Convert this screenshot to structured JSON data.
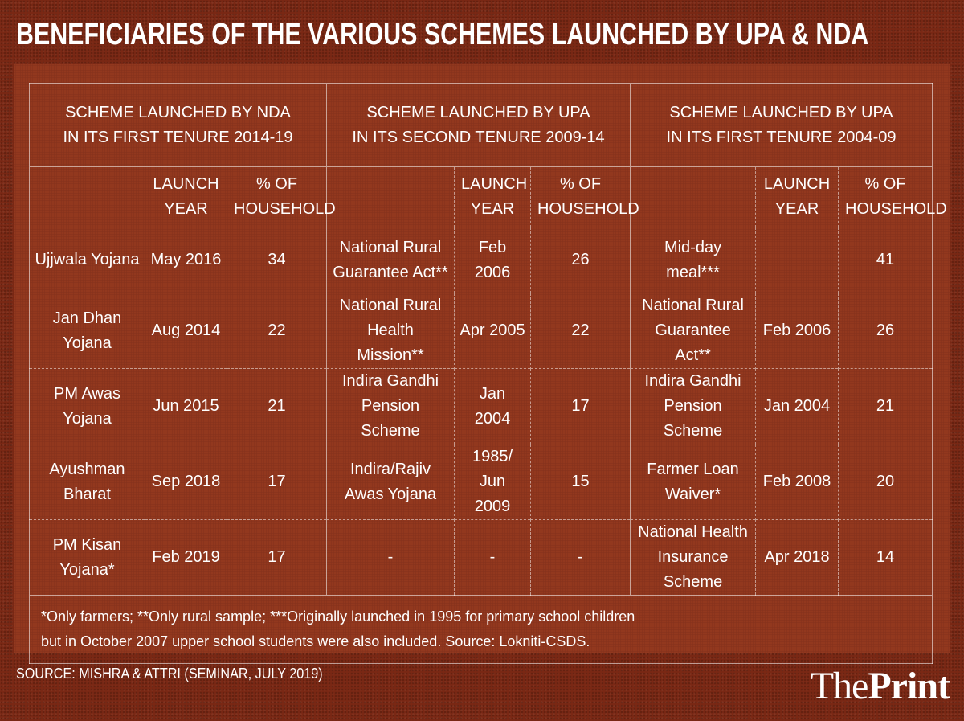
{
  "title": "BENEFICIARIES OF THE VARIOUS SCHEMES LAUNCHED BY UPA & NDA",
  "chart_data": {
    "type": "table",
    "groups": [
      {
        "header": [
          "SCHEME LAUNCHED BY NDA",
          "IN ITS FIRST TENURE 2014-19"
        ],
        "columns": [
          "",
          "LAUNCH YEAR",
          "% OF HOUSEHOLD"
        ],
        "rows": [
          [
            "Ujjwala Yojana",
            "May 2016",
            "34"
          ],
          [
            "Jan Dhan Yojana",
            "Aug 2014",
            "22"
          ],
          [
            "PM Awas Yojana",
            "Jun 2015",
            "21"
          ],
          [
            "Ayushman Bharat",
            "Sep 2018",
            "17"
          ],
          [
            "PM Kisan Yojana*",
            "Feb 2019",
            "17"
          ]
        ]
      },
      {
        "header": [
          "SCHEME LAUNCHED BY UPA",
          "IN ITS SECOND TENURE 2009-14"
        ],
        "columns": [
          "",
          "LAUNCH YEAR",
          "% OF HOUSEHOLD"
        ],
        "rows": [
          [
            "National Rural Guarantee Act**",
            "Feb 2006",
            "26"
          ],
          [
            "National Rural Health Mission**",
            "Apr 2005",
            "22"
          ],
          [
            "Indira Gandhi Pension Scheme",
            "Jan 2004",
            "17"
          ],
          [
            "Indira/Rajiv Awas Yojana",
            "1985/ Jun 2009",
            "15"
          ],
          [
            "-",
            "-",
            "-"
          ]
        ]
      },
      {
        "header": [
          "SCHEME LAUNCHED BY UPA",
          "IN ITS FIRST TENURE 2004-09"
        ],
        "columns": [
          "",
          "LAUNCH YEAR",
          "% OF HOUSEHOLD"
        ],
        "rows": [
          [
            "Mid-day meal***",
            "",
            "41"
          ],
          [
            "National Rural Guarantee Act**",
            "Feb 2006",
            "26"
          ],
          [
            "Indira Gandhi Pension Scheme",
            "Jan 2004",
            "21"
          ],
          [
            "Farmer Loan Waiver*",
            "Feb 2008",
            "20"
          ],
          [
            "National Health Insurance Scheme",
            "Apr 2018",
            "14"
          ]
        ]
      }
    ]
  },
  "footnote": [
    "*Only farmers; **Only rural sample; ***Originally launched in 1995 for primary school children",
    "but in October 2007 upper school students were also included. Source: Lokniti-CSDS."
  ],
  "source": "SOURCE: MISHRA & ATTRI (SEMINAR, JULY 2019)",
  "logo": {
    "the": "The",
    "print": "Print"
  },
  "colors": {
    "background": "#7a2814",
    "panel": "#96391f",
    "text": "#ffffff"
  }
}
